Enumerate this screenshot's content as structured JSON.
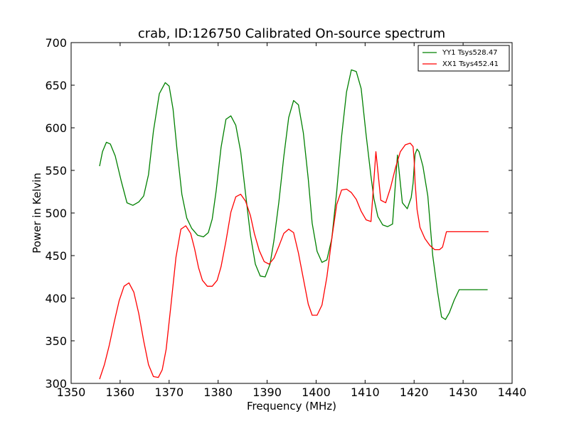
{
  "chart_data": {
    "type": "line",
    "title": "crab, ID:126750 Calibrated On-source spectrum",
    "xlabel": "Frequency (MHz)",
    "ylabel": "Power in Kelvin",
    "xlim": [
      1350,
      1440
    ],
    "ylim": [
      300,
      700
    ],
    "xticks": [
      1350,
      1360,
      1370,
      1380,
      1390,
      1400,
      1410,
      1420,
      1430,
      1440
    ],
    "yticks": [
      300,
      350,
      400,
      450,
      500,
      550,
      600,
      650,
      700
    ],
    "grid": false,
    "legend_position": "top-right",
    "series": [
      {
        "name": "YY1 Tsys528.47",
        "color": "#008000",
        "x": [
          1355.8,
          1356.4,
          1357.2,
          1358.0,
          1359.0,
          1360.2,
          1361.4,
          1362.6,
          1363.8,
          1364.8,
          1365.8,
          1366.8,
          1368.0,
          1369.2,
          1370.0,
          1370.8,
          1371.6,
          1372.6,
          1373.6,
          1374.6,
          1375.8,
          1377.0,
          1378.0,
          1378.8,
          1379.6,
          1380.6,
          1381.6,
          1382.6,
          1383.6,
          1384.6,
          1385.6,
          1386.6,
          1387.6,
          1388.6,
          1389.6,
          1390.6,
          1391.4,
          1392.4,
          1393.4,
          1394.4,
          1395.4,
          1396.4,
          1397.4,
          1398.4,
          1399.2,
          1400.2,
          1401.2,
          1402.2,
          1403.2,
          1404.2,
          1405.2,
          1406.2,
          1407.2,
          1408.2,
          1409.2,
          1410.2,
          1411.2,
          1411.8,
          1412.6,
          1413.6,
          1414.6,
          1415.6,
          1416.6,
          1417.6,
          1418.6,
          1419.4,
          1419.8,
          1420.0,
          1420.2,
          1420.6,
          1421.0,
          1421.8,
          1422.8,
          1423.8,
          1424.8,
          1425.6,
          1426.4,
          1427.2,
          1428.2,
          1429.2,
          1430.2,
          1431.2,
          1432.0,
          1432.6,
          1433.2,
          1434.0,
          1435.0
        ],
        "values": [
          555,
          572,
          583,
          581,
          567,
          538,
          512,
          509,
          513,
          520,
          545,
          596,
          640,
          653,
          649,
          622,
          575,
          522,
          494,
          482,
          474,
          472,
          477,
          493,
          526,
          577,
          610,
          614,
          603,
          572,
          523,
          474,
          440,
          426,
          425,
          440,
          468,
          513,
          566,
          612,
          632,
          627,
          594,
          540,
          488,
          455,
          442,
          445,
          470,
          525,
          590,
          642,
          668,
          666,
          646,
          592,
          543,
          517,
          496,
          486,
          484,
          487,
          568,
          512,
          505,
          518,
          535,
          553,
          569,
          575,
          572,
          555,
          520,
          450,
          407,
          378,
          375,
          383,
          398,
          410,
          410,
          410,
          410,
          410,
          410,
          410,
          410
        ]
      },
      {
        "name": "XX1 Tsys452.41",
        "color": "#ff0000",
        "x": [
          1355.8,
          1356.8,
          1357.8,
          1358.8,
          1359.8,
          1360.8,
          1361.8,
          1362.8,
          1363.8,
          1364.8,
          1365.8,
          1366.8,
          1367.8,
          1368.6,
          1369.4,
          1370.4,
          1371.4,
          1372.4,
          1373.4,
          1374.4,
          1375.2,
          1376.0,
          1376.8,
          1377.8,
          1378.8,
          1379.8,
          1380.6,
          1381.6,
          1382.6,
          1383.6,
          1384.6,
          1385.6,
          1386.6,
          1387.4,
          1388.4,
          1389.4,
          1390.4,
          1391.4,
          1392.4,
          1393.4,
          1394.4,
          1395.4,
          1396.4,
          1397.4,
          1398.4,
          1399.2,
          1400.2,
          1401.2,
          1402.2,
          1403.2,
          1404.2,
          1405.2,
          1406.2,
          1407.2,
          1408.2,
          1409.2,
          1410.2,
          1411.2,
          1412.2,
          1413.2,
          1414.2,
          1415.2,
          1416.2,
          1417.2,
          1418.2,
          1419.2,
          1419.8,
          1420.0,
          1420.2,
          1420.6,
          1421.2,
          1422.2,
          1423.2,
          1424.2,
          1425.2,
          1425.8,
          1426.6,
          1427.6,
          1428.6,
          1429.6,
          1430.6,
          1431.6,
          1432.6,
          1433.6,
          1434.4,
          1435.0,
          1435.2
        ],
        "values": [
          305,
          322,
          345,
          372,
          397,
          414,
          418,
          407,
          382,
          350,
          322,
          308,
          307,
          316,
          340,
          393,
          448,
          481,
          485,
          476,
          458,
          436,
          421,
          414,
          414,
          421,
          437,
          467,
          501,
          519,
          522,
          514,
          497,
          476,
          456,
          443,
          440,
          447,
          461,
          476,
          481,
          477,
          453,
          423,
          393,
          380,
          380,
          392,
          425,
          470,
          510,
          527,
          528,
          524,
          516,
          502,
          492,
          490,
          572,
          515,
          512,
          530,
          553,
          572,
          580,
          582,
          578,
          563,
          536,
          504,
          483,
          470,
          462,
          457,
          457,
          460,
          478,
          478,
          478,
          478,
          478,
          478,
          478,
          478,
          478,
          478,
          478
        ]
      }
    ]
  }
}
